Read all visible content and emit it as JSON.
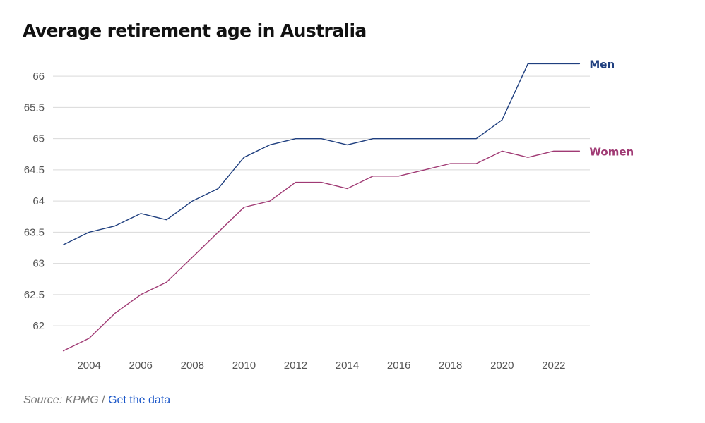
{
  "chart_data": {
    "type": "line",
    "title": "Average retirement age in Australia",
    "x": [
      2003,
      2004,
      2005,
      2006,
      2007,
      2008,
      2009,
      2010,
      2011,
      2012,
      2013,
      2014,
      2015,
      2016,
      2017,
      2018,
      2019,
      2020,
      2021,
      2022,
      2023
    ],
    "x_ticks": [
      2004,
      2006,
      2008,
      2010,
      2012,
      2014,
      2016,
      2018,
      2020,
      2022
    ],
    "y_ticks": [
      62,
      62.5,
      63,
      63.5,
      64,
      64.5,
      65,
      65.5,
      66
    ],
    "ylim": [
      61.55,
      66.25
    ],
    "xlim": [
      2002.6,
      2023.4
    ],
    "grid": "horizontal",
    "legend": "inline labels at line ends",
    "series": [
      {
        "name": "Men",
        "color": "#1f3f7f",
        "values": [
          63.3,
          63.5,
          63.6,
          63.8,
          63.7,
          64.0,
          64.2,
          64.7,
          64.9,
          65.0,
          65.0,
          64.9,
          65.0,
          65.0,
          65.0,
          65.0,
          65.0,
          65.3,
          66.2,
          66.2,
          66.2
        ]
      },
      {
        "name": "Women",
        "color": "#a03a74",
        "values": [
          61.6,
          61.8,
          62.2,
          62.5,
          62.7,
          63.1,
          63.5,
          63.9,
          64.0,
          64.3,
          64.3,
          64.2,
          64.4,
          64.4,
          64.5,
          64.6,
          64.6,
          64.8,
          64.7,
          64.8,
          64.8
        ]
      }
    ]
  },
  "footer": {
    "source": "Source: KPMG",
    "separator": "/",
    "link_label": "Get the data"
  }
}
